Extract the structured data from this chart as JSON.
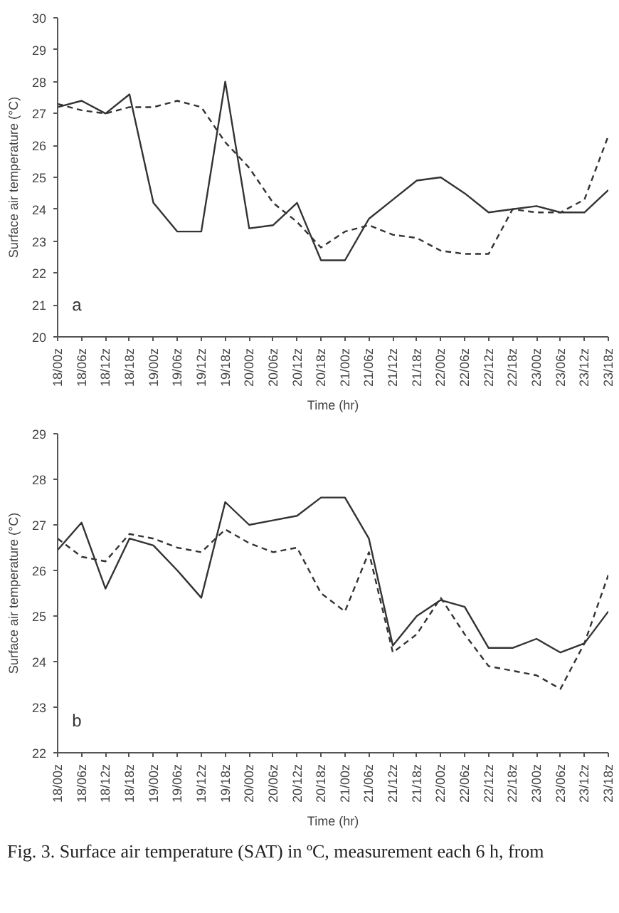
{
  "chart_data": [
    {
      "type": "line",
      "xlabel": "Time (hr)",
      "ylabel": "Surface air temperature (°C)",
      "annotations": [
        "a"
      ],
      "categories": [
        "18/00z",
        "18/06z",
        "18/12z",
        "18/18z",
        "19/00z",
        "19/06z",
        "19/12z",
        "19/18z",
        "20/00z",
        "20/06z",
        "20/12z",
        "20/18z",
        "21/00z",
        "21/06z",
        "21/12z",
        "21/18z",
        "22/00z",
        "22/06z",
        "22/12z",
        "22/18z",
        "23/00z",
        "23/06z",
        "23/12z",
        "23/18z"
      ],
      "series": [
        {
          "color": "#333333",
          "line_style": "solid",
          "values": [
            27.2,
            27.4,
            27.0,
            27.6,
            24.2,
            23.3,
            23.3,
            28.0,
            23.4,
            23.5,
            24.2,
            22.4,
            22.4,
            23.7,
            24.3,
            24.9,
            25.0,
            24.5,
            23.9,
            24.0,
            24.1,
            23.9,
            23.9,
            24.6
          ]
        },
        {
          "color": "#333333",
          "line_style": "dashed",
          "values": [
            27.3,
            27.1,
            27.0,
            27.2,
            27.2,
            27.4,
            27.2,
            26.1,
            25.3,
            24.2,
            23.6,
            22.8,
            23.3,
            23.5,
            23.2,
            23.1,
            22.7,
            22.6,
            22.6,
            24.0,
            23.9,
            23.9,
            24.3,
            26.3
          ]
        }
      ],
      "ylim": [
        20,
        30
      ],
      "yticks": [
        20,
        21,
        22,
        23,
        24,
        25,
        26,
        27,
        28,
        29,
        30
      ],
      "grid": false,
      "marker": "none"
    },
    {
      "type": "line",
      "xlabel": "Time (hr)",
      "ylabel": "Surface air temperature (°C)",
      "annotations": [
        "b",
        "Fig. 3. Surface air temperature (SAT) in ºC, measurement each 6 h, from"
      ],
      "categories": [
        "18/00z",
        "18/06z",
        "18/12z",
        "18/18z",
        "19/00z",
        "19/06z",
        "19/12z",
        "19/18z",
        "20/00z",
        "20/06z",
        "20/12z",
        "20/18z",
        "21/00z",
        "21/06z",
        "21/12z",
        "21/18z",
        "22/00z",
        "22/06z",
        "22/12z",
        "22/18z",
        "23/00z",
        "23/06z",
        "23/12z",
        "23/18z"
      ],
      "series": [
        {
          "color": "#333333",
          "line_style": "solid",
          "values": [
            26.45,
            27.05,
            25.6,
            26.7,
            26.55,
            26.0,
            25.4,
            27.5,
            27.0,
            27.1,
            27.2,
            27.6,
            27.6,
            26.7,
            24.35,
            25.0,
            25.35,
            25.2,
            24.3,
            24.3,
            24.5,
            24.2,
            24.4,
            25.1
          ]
        },
        {
          "color": "#333333",
          "line_style": "dashed",
          "values": [
            26.7,
            26.3,
            26.2,
            26.8,
            26.7,
            26.5,
            26.4,
            26.9,
            26.6,
            26.4,
            26.5,
            25.5,
            25.1,
            26.4,
            24.2,
            24.6,
            25.4,
            24.6,
            23.9,
            23.8,
            23.7,
            23.4,
            24.4,
            25.9
          ]
        }
      ],
      "ylim": [
        22,
        29
      ],
      "yticks": [
        22,
        23,
        24,
        25,
        26,
        27,
        28,
        29
      ],
      "grid": false,
      "marker": "none"
    }
  ]
}
